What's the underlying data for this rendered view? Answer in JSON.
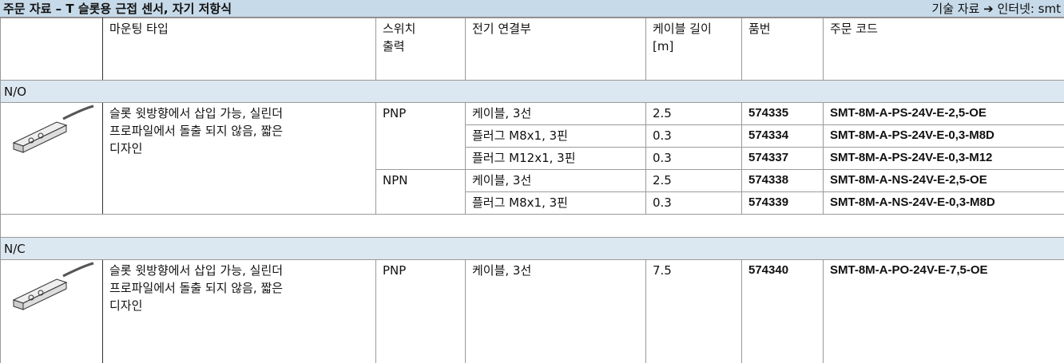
{
  "header": {
    "title": "주문 자료 – T 슬롯용 근접 센서, 자기 저항식",
    "link": "기술 자료 ➔ 인터넷: smt"
  },
  "columns": [
    "마운팅 타입",
    "스위치\n출력",
    "전기 연결부",
    "케이블 길이\n[m]",
    "품번",
    "주문 코드"
  ],
  "groups": [
    {
      "label": "N/O",
      "mounting": "슬롯 윗방향에서 삽입 가능, 실린더\n프로파일에서 돌출 되지 않음, 짧은\n디자인",
      "outputs": [
        {
          "output": "PNP",
          "rows": [
            {
              "connection": "케이블, 3선",
              "cable": 2.5,
              "part": 574335,
              "code": "SMT-8M-A-PS-24V-E-2,5-OE"
            },
            {
              "connection": "플러그 M8x1, 3핀",
              "cable": 0.3,
              "part": 574334,
              "code": "SMT-8M-A-PS-24V-E-0,3-M8D"
            },
            {
              "connection": "플러그 M12x1, 3핀",
              "cable": 0.3,
              "part": 574337,
              "code": "SMT-8M-A-PS-24V-E-0,3-M12"
            }
          ]
        },
        {
          "output": "NPN",
          "rows": [
            {
              "connection": "케이블, 3선",
              "cable": 2.5,
              "part": 574338,
              "code": "SMT-8M-A-NS-24V-E-2,5-OE"
            },
            {
              "connection": "플러그 M8x1, 3핀",
              "cable": 0.3,
              "part": 574339,
              "code": "SMT-8M-A-NS-24V-E-0,3-M8D"
            }
          ]
        }
      ]
    },
    {
      "label": "N/C",
      "mounting": "슬롯 윗방향에서 삽입 가능, 실린더\n프로파일에서 돌출 되지 않음, 짧은\n디자인",
      "outputs": [
        {
          "output": "PNP",
          "rows": [
            {
              "connection": "케이블, 3선",
              "cable": 7.5,
              "part": 574340,
              "code": "SMT-8M-A-PO-24V-E-7,5-OE"
            }
          ]
        }
      ]
    }
  ]
}
